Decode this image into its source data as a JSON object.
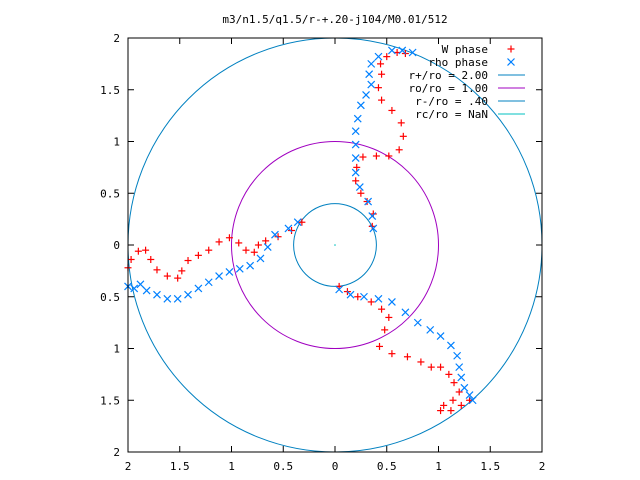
{
  "chart_data": {
    "type": "scatter",
    "title": "m3/n1.5/q1.5/r-+.20-j104/M0.01/512",
    "xlabel": "",
    "ylabel": "",
    "xlim": [
      -2,
      2
    ],
    "ylim": [
      -2,
      2
    ],
    "xticks": [
      {
        "value": -2,
        "label": "2"
      },
      {
        "value": -1.5,
        "label": "1.5"
      },
      {
        "value": -1,
        "label": "1"
      },
      {
        "value": -0.5,
        "label": "0.5"
      },
      {
        "value": 0,
        "label": "0"
      },
      {
        "value": 0.5,
        "label": "0.5"
      },
      {
        "value": 1,
        "label": "1"
      },
      {
        "value": 1.5,
        "label": "1.5"
      },
      {
        "value": 2,
        "label": "2"
      }
    ],
    "yticks": [
      {
        "value": 2,
        "label": "2"
      },
      {
        "value": 1.5,
        "label": "1.5"
      },
      {
        "value": 1,
        "label": "1"
      },
      {
        "value": 0.5,
        "label": "0.5"
      },
      {
        "value": 0,
        "label": "0"
      },
      {
        "value": -0.5,
        "label": "0.5"
      },
      {
        "value": -1,
        "label": "1"
      },
      {
        "value": -1.5,
        "label": "1.5"
      },
      {
        "value": -2,
        "label": "2"
      }
    ],
    "grid": false,
    "legend_position": "top-right",
    "series": [
      {
        "name": "W phase",
        "marker": "plus",
        "color": "#ff0000",
        "points": [
          [
            -0.32,
            0.22
          ],
          [
            -0.42,
            0.14
          ],
          [
            -0.55,
            0.08
          ],
          [
            -0.67,
            0.04
          ],
          [
            -0.74,
            0.0
          ],
          [
            -0.78,
            -0.07
          ],
          [
            -0.86,
            -0.05
          ],
          [
            -0.93,
            0.02
          ],
          [
            -1.02,
            0.07
          ],
          [
            -1.12,
            0.03
          ],
          [
            -1.22,
            -0.05
          ],
          [
            -1.32,
            -0.1
          ],
          [
            -1.42,
            -0.15
          ],
          [
            -1.48,
            -0.25
          ],
          [
            -1.52,
            -0.32
          ],
          [
            -1.62,
            -0.3
          ],
          [
            -1.72,
            -0.24
          ],
          [
            -1.78,
            -0.14
          ],
          [
            -1.83,
            -0.05
          ],
          [
            -1.9,
            -0.06
          ],
          [
            -1.97,
            -0.14
          ],
          [
            -2.0,
            -0.22
          ],
          [
            0.04,
            -0.4
          ],
          [
            0.12,
            -0.45
          ],
          [
            0.22,
            -0.5
          ],
          [
            0.35,
            -0.55
          ],
          [
            0.45,
            -0.62
          ],
          [
            0.52,
            -0.7
          ],
          [
            0.48,
            -0.82
          ],
          [
            0.43,
            -0.98
          ],
          [
            0.55,
            -1.05
          ],
          [
            0.7,
            -1.08
          ],
          [
            0.83,
            -1.13
          ],
          [
            0.93,
            -1.18
          ],
          [
            1.02,
            -1.18
          ],
          [
            1.1,
            -1.25
          ],
          [
            1.15,
            -1.33
          ],
          [
            1.2,
            -1.42
          ],
          [
            1.14,
            -1.5
          ],
          [
            1.05,
            -1.55
          ],
          [
            1.02,
            -1.6
          ],
          [
            1.12,
            -1.6
          ],
          [
            1.22,
            -1.55
          ],
          [
            1.3,
            -1.5
          ],
          [
            0.36,
            0.18
          ],
          [
            0.37,
            0.3
          ],
          [
            0.31,
            0.42
          ],
          [
            0.25,
            0.5
          ],
          [
            0.2,
            0.62
          ],
          [
            0.21,
            0.75
          ],
          [
            0.27,
            0.85
          ],
          [
            0.4,
            0.86
          ],
          [
            0.52,
            0.86
          ],
          [
            0.62,
            0.92
          ],
          [
            0.66,
            1.05
          ],
          [
            0.64,
            1.18
          ],
          [
            0.55,
            1.3
          ],
          [
            0.45,
            1.4
          ],
          [
            0.42,
            1.52
          ],
          [
            0.45,
            1.65
          ],
          [
            0.44,
            1.75
          ],
          [
            0.5,
            1.82
          ],
          [
            0.6,
            1.86
          ],
          [
            0.68,
            1.85
          ]
        ]
      },
      {
        "name": "rho phase",
        "marker": "cross",
        "color": "#0080ff",
        "points": [
          [
            -0.36,
            0.22
          ],
          [
            -0.45,
            0.16
          ],
          [
            -0.58,
            0.1
          ],
          [
            -0.65,
            -0.02
          ],
          [
            -0.72,
            -0.13
          ],
          [
            -0.82,
            -0.2
          ],
          [
            -0.92,
            -0.23
          ],
          [
            -1.02,
            -0.26
          ],
          [
            -1.12,
            -0.3
          ],
          [
            -1.22,
            -0.36
          ],
          [
            -1.32,
            -0.42
          ],
          [
            -1.42,
            -0.48
          ],
          [
            -1.52,
            -0.52
          ],
          [
            -1.62,
            -0.52
          ],
          [
            -1.72,
            -0.48
          ],
          [
            -1.82,
            -0.44
          ],
          [
            -1.88,
            -0.38
          ],
          [
            -1.94,
            -0.42
          ],
          [
            -2.0,
            -0.4
          ],
          [
            0.04,
            -0.43
          ],
          [
            0.15,
            -0.48
          ],
          [
            0.28,
            -0.5
          ],
          [
            0.42,
            -0.52
          ],
          [
            0.55,
            -0.55
          ],
          [
            0.68,
            -0.65
          ],
          [
            0.8,
            -0.75
          ],
          [
            0.92,
            -0.82
          ],
          [
            1.02,
            -0.88
          ],
          [
            1.12,
            -0.97
          ],
          [
            1.18,
            -1.07
          ],
          [
            1.2,
            -1.18
          ],
          [
            1.22,
            -1.28
          ],
          [
            1.25,
            -1.38
          ],
          [
            1.3,
            -1.45
          ],
          [
            1.33,
            -1.5
          ],
          [
            0.37,
            0.16
          ],
          [
            0.36,
            0.28
          ],
          [
            0.32,
            0.42
          ],
          [
            0.24,
            0.56
          ],
          [
            0.2,
            0.7
          ],
          [
            0.2,
            0.84
          ],
          [
            0.2,
            0.97
          ],
          [
            0.2,
            1.1
          ],
          [
            0.22,
            1.22
          ],
          [
            0.25,
            1.35
          ],
          [
            0.3,
            1.45
          ],
          [
            0.35,
            1.55
          ],
          [
            0.33,
            1.65
          ],
          [
            0.35,
            1.75
          ],
          [
            0.42,
            1.82
          ],
          [
            0.55,
            1.88
          ],
          [
            0.65,
            1.88
          ],
          [
            0.75,
            1.86
          ]
        ]
      },
      {
        "name": "r+/ro = 2.00",
        "marker": "circle",
        "radius": 2.0,
        "color": "#0080c0"
      },
      {
        "name": "ro/ro = 1.00",
        "marker": "circle",
        "radius": 1.0,
        "color": "#a000c0"
      },
      {
        "name": "r-/ro = .40",
        "marker": "circle",
        "radius": 0.4,
        "color": "#0080c0"
      },
      {
        "name": "rc/ro = NaN",
        "marker": "circle",
        "radius": null,
        "color": "#00c0c0"
      }
    ]
  }
}
